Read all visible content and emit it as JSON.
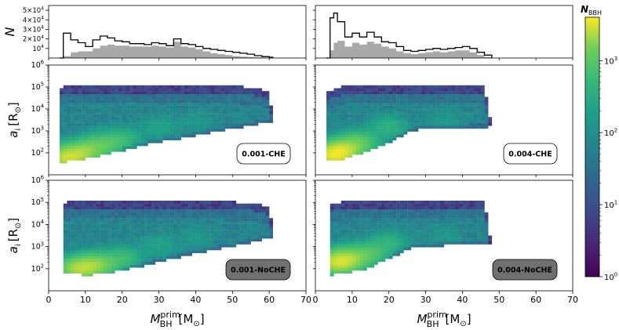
{
  "chart_data": {
    "type": "heatmap",
    "x_ticks": [
      "0",
      "10",
      "20",
      "30",
      "40",
      "50",
      "60",
      "70"
    ],
    "xlim": [
      0,
      70
    ],
    "xlabel_main": "M",
    "xlabel_super": "prim",
    "xlabel_sub": "BH",
    "xlabel_unit": "[M",
    "xlabel_unit_end": "]",
    "ylabel_hist": "N",
    "ylabel_main": "a",
    "ylabel_sub": "i",
    "ylabel_unit": "[R",
    "ylabel_unit_end": "]",
    "hist_ticks": [
      {
        "value": 10000,
        "mant": "10",
        "exp": "4"
      },
      {
        "value": 20000,
        "mant": "2×10",
        "exp": "4"
      },
      {
        "value": 30000,
        "mant": "3×10",
        "exp": "4"
      },
      {
        "value": 40000,
        "mant": "4×10",
        "exp": "4"
      },
      {
        "value": 50000,
        "mant": "5×10",
        "exp": "4"
      }
    ],
    "hist_ylim": [
      0,
      55000
    ],
    "a_ticks": [
      {
        "value": 100,
        "mant": "10",
        "exp": "2"
      },
      {
        "value": 1000,
        "mant": "10",
        "exp": "3"
      },
      {
        "value": 10000,
        "mant": "10",
        "exp": "4"
      },
      {
        "value": 100000,
        "mant": "10",
        "exp": "5"
      },
      {
        "value": 1000000,
        "mant": "10",
        "exp": "6"
      }
    ],
    "a_ylim": [
      10,
      1000000
    ],
    "colorbar": {
      "label_main": "N",
      "label_sub": "BBH",
      "range": [
        1,
        4000
      ],
      "ticks": [
        {
          "value": 1,
          "mant": "10",
          "exp": "0"
        },
        {
          "value": 10,
          "mant": "10",
          "exp": "1"
        },
        {
          "value": 100,
          "mant": "10",
          "exp": "2"
        },
        {
          "value": 1000,
          "mant": "10",
          "exp": "3"
        }
      ]
    },
    "models": [
      {
        "label": "0.001-CHE",
        "badge_fill": "#ffffff",
        "badge_text": "#000000",
        "mass_range": [
          3,
          61
        ],
        "hist_outline": [
          {
            "x": 3,
            "v": 0
          },
          {
            "x": 4,
            "v": 26000
          },
          {
            "x": 6,
            "v": 19000
          },
          {
            "x": 8,
            "v": 16000
          },
          {
            "x": 10,
            "v": 12000
          },
          {
            "x": 12,
            "v": 19000
          },
          {
            "x": 14,
            "v": 23000
          },
          {
            "x": 16,
            "v": 21000
          },
          {
            "x": 18,
            "v": 18000
          },
          {
            "x": 20,
            "v": 17000
          },
          {
            "x": 22,
            "v": 15000
          },
          {
            "x": 24,
            "v": 15000
          },
          {
            "x": 26,
            "v": 14000
          },
          {
            "x": 28,
            "v": 16000
          },
          {
            "x": 30,
            "v": 15000
          },
          {
            "x": 32,
            "v": 13000
          },
          {
            "x": 34,
            "v": 20000
          },
          {
            "x": 36,
            "v": 15000
          },
          {
            "x": 38,
            "v": 14000
          },
          {
            "x": 40,
            "v": 12000
          },
          {
            "x": 42,
            "v": 10000
          },
          {
            "x": 44,
            "v": 9000
          },
          {
            "x": 46,
            "v": 8000
          },
          {
            "x": 48,
            "v": 7000
          },
          {
            "x": 50,
            "v": 6000
          },
          {
            "x": 52,
            "v": 5000
          },
          {
            "x": 54,
            "v": 4000
          },
          {
            "x": 56,
            "v": 2500
          },
          {
            "x": 58,
            "v": 1500
          },
          {
            "x": 60,
            "v": 800
          },
          {
            "x": 61,
            "v": 0
          }
        ],
        "hist_filled": [
          {
            "x": 3,
            "v": 0
          },
          {
            "x": 4,
            "v": 2000
          },
          {
            "x": 6,
            "v": 6000
          },
          {
            "x": 8,
            "v": 7000
          },
          {
            "x": 10,
            "v": 7000
          },
          {
            "x": 12,
            "v": 10000
          },
          {
            "x": 14,
            "v": 13000
          },
          {
            "x": 16,
            "v": 14000
          },
          {
            "x": 18,
            "v": 13000
          },
          {
            "x": 20,
            "v": 13000
          },
          {
            "x": 22,
            "v": 12000
          },
          {
            "x": 24,
            "v": 12000
          },
          {
            "x": 26,
            "v": 12000
          },
          {
            "x": 28,
            "v": 13000
          },
          {
            "x": 30,
            "v": 12000
          },
          {
            "x": 32,
            "v": 11000
          },
          {
            "x": 34,
            "v": 17000
          },
          {
            "x": 36,
            "v": 12000
          },
          {
            "x": 38,
            "v": 11000
          },
          {
            "x": 40,
            "v": 9000
          },
          {
            "x": 42,
            "v": 7000
          },
          {
            "x": 44,
            "v": 5000
          },
          {
            "x": 46,
            "v": 4000
          },
          {
            "x": 48,
            "v": 3000
          },
          {
            "x": 50,
            "v": 2000
          },
          {
            "x": 52,
            "v": 1500
          },
          {
            "x": 54,
            "v": 1000
          },
          {
            "x": 56,
            "v": 600
          },
          {
            "x": 58,
            "v": 300
          },
          {
            "x": 60,
            "v": 0
          }
        ],
        "a_max_edge": [
          {
            "m": 3,
            "a": 100000
          },
          {
            "m": 10,
            "a": 120000
          },
          {
            "m": 30,
            "a": 120000
          },
          {
            "m": 50,
            "a": 110000
          },
          {
            "m": 55,
            "a": 100000
          },
          {
            "m": 58,
            "a": 80000
          },
          {
            "m": 60,
            "a": 60000
          },
          {
            "m": 61,
            "a": 3000
          }
        ],
        "a_min_edge": [
          {
            "m": 3,
            "a": 35
          },
          {
            "m": 8,
            "a": 45
          },
          {
            "m": 15,
            "a": 80
          },
          {
            "m": 20,
            "a": 120
          },
          {
            "m": 25,
            "a": 200
          },
          {
            "m": 30,
            "a": 300
          },
          {
            "m": 35,
            "a": 400
          },
          {
            "m": 40,
            "a": 600
          },
          {
            "m": 45,
            "a": 900
          },
          {
            "m": 50,
            "a": 1200
          },
          {
            "m": 55,
            "a": 1800
          },
          {
            "m": 61,
            "a": 2500
          }
        ],
        "ridges": [
          {
            "m": 5,
            "a": 60,
            "n": 2500
          },
          {
            "m": 10,
            "a": 120,
            "n": 1500
          },
          {
            "m": 15,
            "a": 250,
            "n": 700
          },
          {
            "m": 20,
            "a": 400,
            "n": 400
          },
          {
            "m": 30,
            "a": 1500,
            "n": 150
          },
          {
            "m": 40,
            "a": 2500,
            "n": 80
          }
        ]
      },
      {
        "label": "0.004-CHE",
        "badge_fill": "#ffffff",
        "badge_text": "#000000",
        "mass_range": [
          3,
          48
        ],
        "hist_outline": [
          {
            "x": 3,
            "v": 0
          },
          {
            "x": 4,
            "v": 42000
          },
          {
            "x": 5,
            "v": 47000
          },
          {
            "x": 6,
            "v": 38000
          },
          {
            "x": 8,
            "v": 22000
          },
          {
            "x": 10,
            "v": 26000
          },
          {
            "x": 12,
            "v": 22000
          },
          {
            "x": 14,
            "v": 27000
          },
          {
            "x": 16,
            "v": 22000
          },
          {
            "x": 18,
            "v": 17000
          },
          {
            "x": 20,
            "v": 16000
          },
          {
            "x": 22,
            "v": 12000
          },
          {
            "x": 24,
            "v": 8000
          },
          {
            "x": 26,
            "v": 7000
          },
          {
            "x": 28,
            "v": 8000
          },
          {
            "x": 30,
            "v": 9000
          },
          {
            "x": 32,
            "v": 10000
          },
          {
            "x": 34,
            "v": 9000
          },
          {
            "x": 36,
            "v": 10000
          },
          {
            "x": 38,
            "v": 11000
          },
          {
            "x": 40,
            "v": 12000
          },
          {
            "x": 42,
            "v": 10000
          },
          {
            "x": 44,
            "v": 6000
          },
          {
            "x": 46,
            "v": 3000
          },
          {
            "x": 48,
            "v": 0
          }
        ],
        "hist_filled": [
          {
            "x": 3,
            "v": 0
          },
          {
            "x": 4,
            "v": 8000
          },
          {
            "x": 5,
            "v": 16000
          },
          {
            "x": 6,
            "v": 18000
          },
          {
            "x": 8,
            "v": 12000
          },
          {
            "x": 10,
            "v": 16000
          },
          {
            "x": 12,
            "v": 14000
          },
          {
            "x": 14,
            "v": 17000
          },
          {
            "x": 16,
            "v": 15000
          },
          {
            "x": 18,
            "v": 12000
          },
          {
            "x": 20,
            "v": 10000
          },
          {
            "x": 22,
            "v": 7000
          },
          {
            "x": 24,
            "v": 5000
          },
          {
            "x": 26,
            "v": 4000
          },
          {
            "x": 28,
            "v": 5000
          },
          {
            "x": 30,
            "v": 6000
          },
          {
            "x": 32,
            "v": 7000
          },
          {
            "x": 34,
            "v": 6000
          },
          {
            "x": 36,
            "v": 7000
          },
          {
            "x": 38,
            "v": 8000
          },
          {
            "x": 40,
            "v": 8000
          },
          {
            "x": 42,
            "v": 6000
          },
          {
            "x": 44,
            "v": 3000
          },
          {
            "x": 46,
            "v": 1000
          },
          {
            "x": 48,
            "v": 0
          }
        ],
        "a_max_edge": [
          {
            "m": 3,
            "a": 60000
          },
          {
            "m": 8,
            "a": 110000
          },
          {
            "m": 30,
            "a": 120000
          },
          {
            "m": 46,
            "a": 110000
          },
          {
            "m": 48,
            "a": 1200
          }
        ],
        "a_min_edge": [
          {
            "m": 3,
            "a": 40
          },
          {
            "m": 8,
            "a": 50
          },
          {
            "m": 14,
            "a": 120
          },
          {
            "m": 18,
            "a": 200
          },
          {
            "m": 22,
            "a": 400
          },
          {
            "m": 26,
            "a": 1000
          },
          {
            "m": 30,
            "a": 1200
          },
          {
            "m": 40,
            "a": 1400
          },
          {
            "m": 48,
            "a": 1500
          }
        ],
        "ridges": [
          {
            "m": 5,
            "a": 80,
            "n": 3000
          },
          {
            "m": 8,
            "a": 150,
            "n": 1500
          },
          {
            "m": 12,
            "a": 300,
            "n": 800
          },
          {
            "m": 20,
            "a": 1500,
            "n": 300
          },
          {
            "m": 35,
            "a": 3000,
            "n": 80
          }
        ]
      },
      {
        "label": "0.001-NoCHE",
        "badge_fill": "#707070",
        "badge_text": "#ffffff",
        "mass_range": [
          4,
          61
        ],
        "a_max_edge": [
          {
            "m": 4,
            "a": 100000
          },
          {
            "m": 10,
            "a": 120000
          },
          {
            "m": 30,
            "a": 120000
          },
          {
            "m": 55,
            "a": 100000
          },
          {
            "m": 60,
            "a": 60000
          },
          {
            "m": 61,
            "a": 5000
          }
        ],
        "a_min_edge": [
          {
            "m": 4,
            "a": 70
          },
          {
            "m": 10,
            "a": 50
          },
          {
            "m": 15,
            "a": 60
          },
          {
            "m": 20,
            "a": 80
          },
          {
            "m": 25,
            "a": 120
          },
          {
            "m": 30,
            "a": 200
          },
          {
            "m": 35,
            "a": 300
          },
          {
            "m": 40,
            "a": 500
          },
          {
            "m": 45,
            "a": 700
          },
          {
            "m": 50,
            "a": 1000
          },
          {
            "m": 55,
            "a": 1500
          },
          {
            "m": 61,
            "a": 2500
          }
        ],
        "ridges": [
          {
            "m": 8,
            "a": 100,
            "n": 2000
          },
          {
            "m": 13,
            "a": 150,
            "n": 1500
          },
          {
            "m": 20,
            "a": 300,
            "n": 500
          },
          {
            "m": 30,
            "a": 1200,
            "n": 150
          },
          {
            "m": 40,
            "a": 2500,
            "n": 80
          }
        ]
      },
      {
        "label": "0.004-NoCHE",
        "badge_fill": "#707070",
        "badge_text": "#ffffff",
        "mass_range": [
          4,
          48
        ],
        "a_max_edge": [
          {
            "m": 4,
            "a": 90000
          },
          {
            "m": 8,
            "a": 110000
          },
          {
            "m": 30,
            "a": 120000
          },
          {
            "m": 46,
            "a": 110000
          },
          {
            "m": 48,
            "a": 1000
          }
        ],
        "a_min_edge": [
          {
            "m": 4,
            "a": 50
          },
          {
            "m": 8,
            "a": 60
          },
          {
            "m": 14,
            "a": 100
          },
          {
            "m": 18,
            "a": 200
          },
          {
            "m": 22,
            "a": 400
          },
          {
            "m": 26,
            "a": 800
          },
          {
            "m": 30,
            "a": 1000
          },
          {
            "m": 40,
            "a": 1200
          },
          {
            "m": 48,
            "a": 1300
          }
        ],
        "ridges": [
          {
            "m": 6,
            "a": 200,
            "n": 2500
          },
          {
            "m": 10,
            "a": 300,
            "n": 1200
          },
          {
            "m": 15,
            "a": 500,
            "n": 600
          },
          {
            "m": 20,
            "a": 1500,
            "n": 300
          },
          {
            "m": 35,
            "a": 3000,
            "n": 80
          }
        ]
      }
    ]
  }
}
